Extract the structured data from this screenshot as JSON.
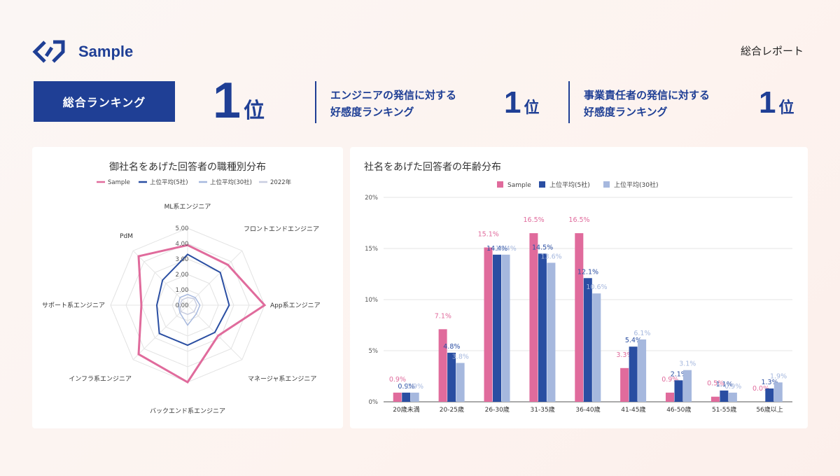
{
  "header": {
    "logo_text": "Sample",
    "report_label": "総合レポート"
  },
  "ranking": {
    "badge_label": "総合ランキング",
    "overall": {
      "num": "1",
      "unit": "位"
    },
    "engineer": {
      "line1": "エンジニアの発信に対する",
      "line2": "好感度ランキング",
      "num": "1",
      "unit": "位"
    },
    "executive": {
      "line1": "事業責任者の発信に対する",
      "line2": "好感度ランキング",
      "num": "1",
      "unit": "位"
    }
  },
  "colors": {
    "brand": "#1f3f95",
    "sample": "#e06b9c",
    "top5": "#2a4ea2",
    "top30": "#a6b8de",
    "year2022": "#c8cde0"
  },
  "chart_data": [
    {
      "type": "radar",
      "title": "御社名をあげた回答者の職種別分布",
      "legend": [
        "Sample",
        "上位平均(5社)",
        "上位平均(30社)",
        "2022年"
      ],
      "legend_position": "top",
      "axes": [
        "ML系エンジニア",
        "フロントエンドエンジニア",
        "App系エンジニア",
        "マネージャ系エンジニア",
        "バックエンド系エンジニア",
        "インフラ系エンジニア",
        "サポート系エンジニア",
        "PdM"
      ],
      "rlim": [
        0,
        5
      ],
      "ticks": [
        "0.00",
        "1.00",
        "2.00",
        "3.00",
        "4.00",
        "5.00"
      ],
      "series": [
        {
          "name": "Sample",
          "values": [
            3.9,
            3.7,
            5.0,
            2.8,
            5.0,
            4.5,
            3.0,
            4.5
          ]
        },
        {
          "name": "上位平均(5社)",
          "values": [
            3.3,
            3.0,
            2.7,
            2.5,
            2.6,
            2.6,
            2.0,
            2.3
          ]
        },
        {
          "name": "上位平均(30社)",
          "values": [
            0.7,
            0.7,
            0.8,
            0.8,
            1.3,
            0.7,
            0.6,
            0.7
          ]
        },
        {
          "name": "2022年",
          "values": [
            0.5,
            0.6,
            0.6,
            0.6,
            0.6,
            0.6,
            0.5,
            0.5
          ]
        }
      ]
    },
    {
      "type": "bar",
      "title": "社名をあげた回答者の年齢分布",
      "legend_position": "top",
      "categories": [
        "20歳未満",
        "20-25歳",
        "26-30歳",
        "31-35歳",
        "36-40歳",
        "41-45歳",
        "46-50歳",
        "51-55歳",
        "56歳以上"
      ],
      "series": [
        {
          "name": "Sample",
          "values": [
            0.9,
            7.1,
            15.1,
            16.5,
            16.5,
            3.3,
            0.9,
            0.5,
            0.0
          ],
          "labels": [
            "0.9%",
            "7.1%",
            "15.1%",
            "16.5%",
            "16.5%",
            "3.3%",
            "0.9%",
            "0.5%",
            "0.0%"
          ]
        },
        {
          "name": "上位平均(5社)",
          "values": [
            0.9,
            4.8,
            14.4,
            14.5,
            12.1,
            5.4,
            2.1,
            1.1,
            1.3
          ],
          "labels": [
            "0.9%",
            "4.8%",
            "14.4%",
            "14.5%",
            "12.1%",
            "5.4%",
            "2.1%",
            "1.1%",
            "1.3%"
          ]
        },
        {
          "name": "上位平均(30社)",
          "values": [
            0.9,
            3.8,
            14.4,
            13.6,
            10.6,
            6.1,
            3.1,
            0.9,
            1.9
          ],
          "labels": [
            "0.9%",
            "3.8%",
            "14.4%",
            "13.6%",
            "10.6%",
            "6.1%",
            "3.1%",
            "0.9%",
            "1.9%"
          ]
        }
      ],
      "ylim": [
        0,
        20
      ],
      "yticks": [
        "0%",
        "5%",
        "10%",
        "15%",
        "20%"
      ],
      "grid": true
    }
  ]
}
